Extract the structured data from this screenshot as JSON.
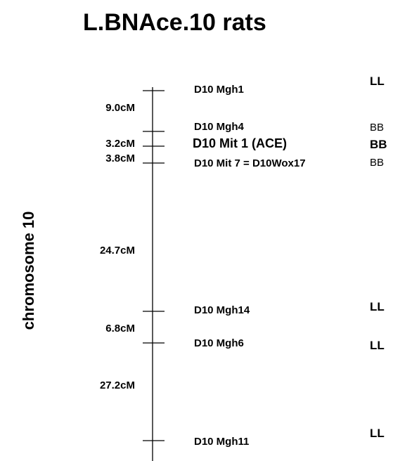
{
  "title": "L.BNAce.10 rats",
  "axis_label": "chromosome 10",
  "markers": [
    {
      "name": "D10 Mgh1",
      "genotype": "LL",
      "genotype_bold": true,
      "emphasis": false
    },
    {
      "name": "D10 Mgh4",
      "genotype": "BB",
      "genotype_bold": false,
      "emphasis": false
    },
    {
      "name": "D10 Mit 1 (ACE)",
      "genotype": "BB",
      "genotype_bold": true,
      "emphasis": true
    },
    {
      "name": "D10 Mit 7 = D10Wox17",
      "genotype": "BB",
      "genotype_bold": false,
      "emphasis": false
    },
    {
      "name": "D10 Mgh14",
      "genotype": "LL",
      "genotype_bold": true,
      "emphasis": false
    },
    {
      "name": "D10 Mgh6",
      "genotype": "LL",
      "genotype_bold": true,
      "emphasis": false
    },
    {
      "name": "D10 Mgh11",
      "genotype": "LL",
      "genotype_bold": true,
      "emphasis": false
    }
  ],
  "intervals": [
    {
      "label": "9.0cM",
      "value_cM": 9.0
    },
    {
      "label": "3.2cM",
      "value_cM": 3.2
    },
    {
      "label": "3.8cM",
      "value_cM": 3.8
    },
    {
      "label": "24.7cM",
      "value_cM": 24.7
    },
    {
      "label": "6.8cM",
      "value_cM": 6.8
    },
    {
      "label": "27.2cM",
      "value_cM": 27.2
    }
  ]
}
